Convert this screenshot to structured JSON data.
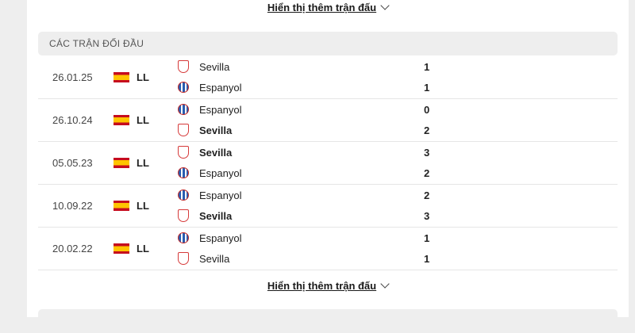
{
  "show_more_label": "Hiển thị thêm trận đấu",
  "section_title": "CÁC TRẬN ĐỐI ĐẦU",
  "matches": [
    {
      "date": "26.01.25",
      "league": "LL",
      "teams": [
        {
          "name": "Sevilla",
          "logo": "sevilla-crest",
          "score": "1",
          "winner": false
        },
        {
          "name": "Espanyol",
          "logo": "espanyol-crest",
          "score": "1",
          "winner": false
        }
      ]
    },
    {
      "date": "26.10.24",
      "league": "LL",
      "teams": [
        {
          "name": "Espanyol",
          "logo": "espanyol-crest",
          "score": "0",
          "winner": false
        },
        {
          "name": "Sevilla",
          "logo": "sevilla-crest",
          "score": "2",
          "winner": true
        }
      ]
    },
    {
      "date": "05.05.23",
      "league": "LL",
      "teams": [
        {
          "name": "Sevilla",
          "logo": "sevilla-crest",
          "score": "3",
          "winner": true
        },
        {
          "name": "Espanyol",
          "logo": "espanyol-crest",
          "score": "2",
          "winner": false
        }
      ]
    },
    {
      "date": "10.09.22",
      "league": "LL",
      "teams": [
        {
          "name": "Espanyol",
          "logo": "espanyol-crest",
          "score": "2",
          "winner": false
        },
        {
          "name": "Sevilla",
          "logo": "sevilla-crest",
          "score": "3",
          "winner": true
        }
      ]
    },
    {
      "date": "20.02.22",
      "league": "LL",
      "teams": [
        {
          "name": "Espanyol",
          "logo": "espanyol-crest",
          "score": "1",
          "winner": false
        },
        {
          "name": "Sevilla",
          "logo": "sevilla-crest",
          "score": "1",
          "winner": false
        }
      ]
    }
  ]
}
